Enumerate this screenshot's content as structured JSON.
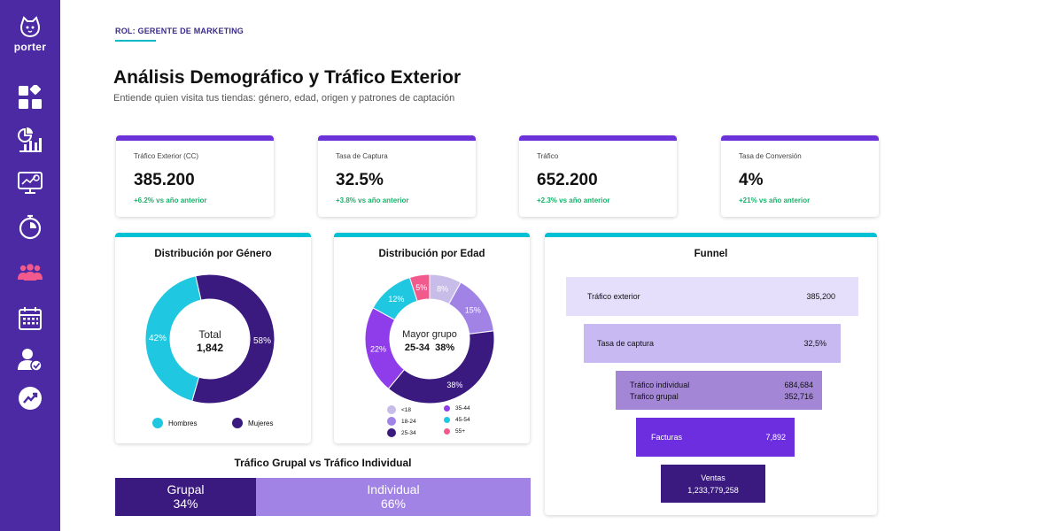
{
  "app": {
    "brand": "porter"
  },
  "sidebar": {
    "items": [
      {
        "name": "dashboard-icon"
      },
      {
        "name": "analytics-icon"
      },
      {
        "name": "monitor-icon"
      },
      {
        "name": "stopwatch-icon"
      },
      {
        "name": "people-icon"
      },
      {
        "name": "calendar-icon"
      },
      {
        "name": "user-check-icon"
      },
      {
        "name": "trend-up-icon"
      }
    ]
  },
  "header": {
    "role": "ROL: GERENTE DE MARKETING",
    "title": "Análisis Demográfico y Tráfico Exterior",
    "subtitle": "Entiende quien visita tus tiendas: género, edad, origen y patrones de captación"
  },
  "kpis": [
    {
      "label": "Tráfico Exterior (CC)",
      "value": "385.200",
      "delta": "+6.2% vs año anterior"
    },
    {
      "label": "Tasa de Captura",
      "value": "32.5%",
      "delta": "+3.8% vs año anterior"
    },
    {
      "label": "Tráfico",
      "value": "652.200",
      "delta": "+2.3% vs año anterior"
    },
    {
      "label": "Tasa de Conversión",
      "value": "4%",
      "delta": "+21% vs año anterior"
    }
  ],
  "gender": {
    "title": "Distribución por Género",
    "center_label": "Total",
    "center_value": "1,842",
    "slice_labels": [
      "42%",
      "58%"
    ],
    "legend": [
      "Hombres",
      "Mujeres"
    ]
  },
  "age": {
    "title": "Distribución por Edad",
    "center_label": "Mayor grupo",
    "center_value": "25-34  38%",
    "slice_labels": [
      "8%",
      "15%",
      "38%",
      "22%",
      "12%",
      "5%"
    ],
    "legend": [
      "<18",
      "35-44",
      "18-24",
      "45-54",
      "25-34",
      "55+"
    ]
  },
  "funnel": {
    "title": "Funnel",
    "rows": [
      {
        "label": "Tráfico exterior",
        "value": "385,200"
      },
      {
        "label": "Tasa de captura",
        "value": "32,5%"
      },
      {
        "label": "Tráfico individual",
        "value": "684,684"
      },
      {
        "label": "Trafico grupal",
        "value": "352,716"
      },
      {
        "label": "Facturas",
        "value": "7,892"
      },
      {
        "label": "Ventas",
        "value": "1,233,779,258"
      }
    ]
  },
  "group_vs_individual": {
    "title": "Tráfico Grupal vs Tráfico Individual",
    "group_label": "Grupal",
    "group_pct": "34%",
    "individual_label": "Individual",
    "individual_pct": "66%"
  },
  "chart_data": [
    {
      "type": "pie",
      "title": "Distribución por Género",
      "categories": [
        "Hombres",
        "Mujeres"
      ],
      "values": [
        42,
        58
      ],
      "colors": [
        "#1fc7e0",
        "#3a1a7e"
      ]
    },
    {
      "type": "pie",
      "title": "Distribución por Edad",
      "categories": [
        "<18",
        "18-24",
        "25-34",
        "35-44",
        "45-54",
        "55+"
      ],
      "values": [
        8,
        15,
        38,
        22,
        12,
        5
      ],
      "colors": [
        "#c7bde8",
        "#a183e6",
        "#3a1a7e",
        "#8f3dea",
        "#1fc7e0",
        "#f25a8e"
      ]
    },
    {
      "type": "bar",
      "title": "Tráfico Grupal vs Tráfico Individual",
      "categories": [
        "Grupal",
        "Individual"
      ],
      "values": [
        34,
        66
      ],
      "colors": [
        "#3a1a7e",
        "#a183e6"
      ]
    }
  ]
}
